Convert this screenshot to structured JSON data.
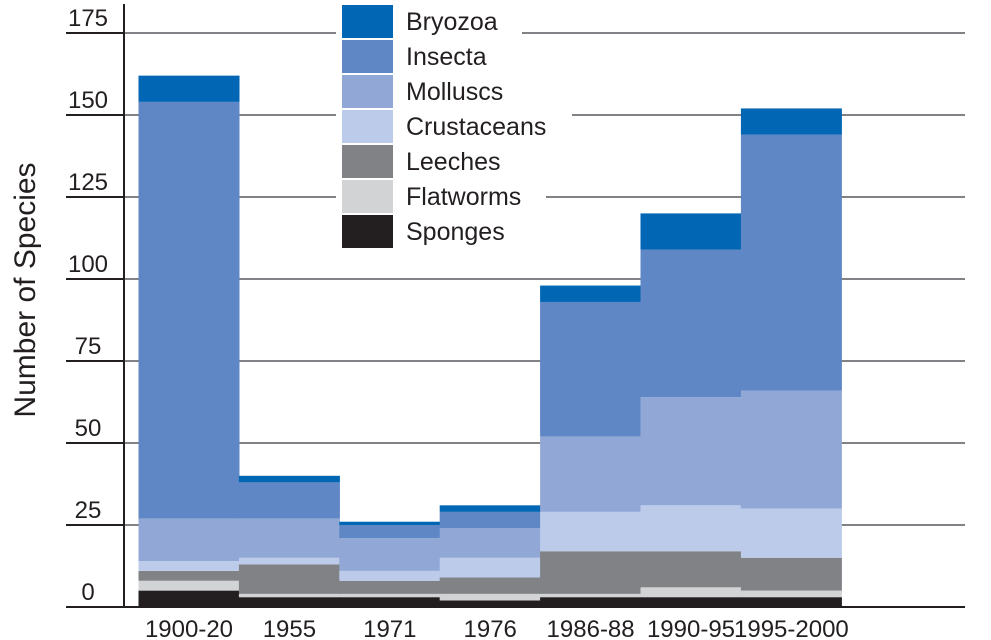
{
  "chart_data": {
    "type": "bar",
    "stacked": true,
    "title": "",
    "xlabel": "",
    "ylabel": "Number of Species",
    "ylim": [
      0,
      175
    ],
    "yticks": [
      0,
      25,
      50,
      75,
      100,
      125,
      150,
      175
    ],
    "categories": [
      "1900-20",
      "1955",
      "1971",
      "1976",
      "1986-88",
      "1990-95",
      "1995-2000"
    ],
    "series": [
      {
        "name": "Sponges",
        "color": "#231f20",
        "values": [
          5,
          3,
          3,
          2,
          3,
          3,
          3
        ]
      },
      {
        "name": "Flatworms",
        "color": "#d1d3d4",
        "values": [
          3,
          1,
          1,
          2,
          1,
          3,
          2
        ]
      },
      {
        "name": "Leeches",
        "color": "#808285",
        "values": [
          3,
          9,
          4,
          5,
          13,
          11,
          10
        ]
      },
      {
        "name": "Crustaceans",
        "color": "#bccbea",
        "values": [
          3,
          2,
          3,
          6,
          12,
          14,
          15
        ]
      },
      {
        "name": "Molluscs",
        "color": "#91a8d6",
        "values": [
          13,
          12,
          10,
          9,
          23,
          33,
          36
        ]
      },
      {
        "name": "Insecta",
        "color": "#5f87c5",
        "values": [
          127,
          11,
          4,
          5,
          41,
          45,
          78
        ]
      },
      {
        "name": "Bryozoa",
        "color": "#0166b3",
        "values": [
          8,
          2,
          1,
          2,
          5,
          11,
          8
        ]
      }
    ],
    "legend_position": "top-center",
    "grid": true
  }
}
